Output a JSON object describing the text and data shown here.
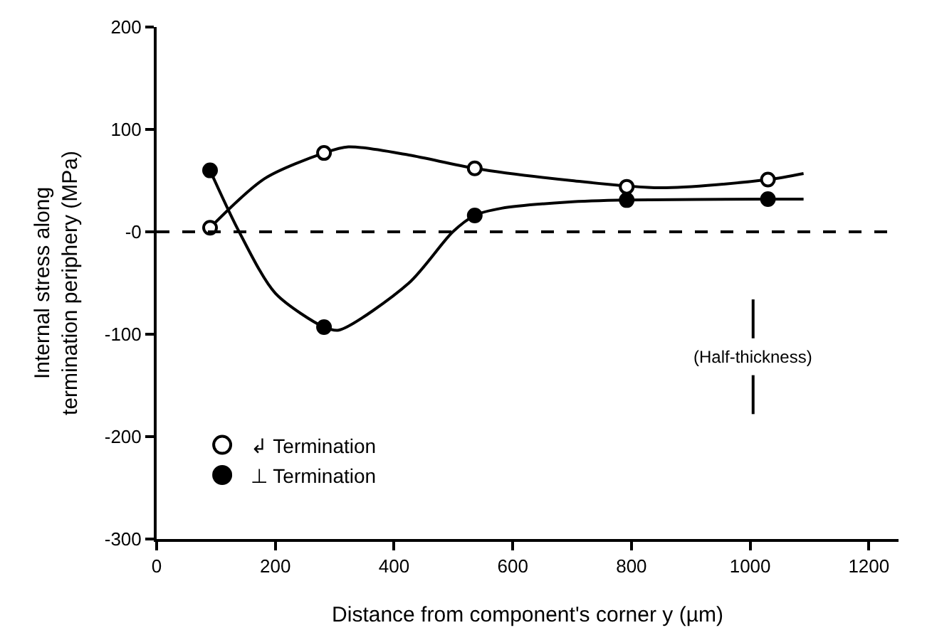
{
  "chart_data": {
    "type": "scatter",
    "xlabel": "Distance from component's corner y (µm)",
    "ylabel": "Internal stress along\ntermination periphery (MPa)",
    "xlim": [
      0,
      1250
    ],
    "xticks": [
      0,
      200,
      400,
      600,
      800,
      1000,
      1200
    ],
    "ylim": [
      -300,
      200
    ],
    "yticks": [
      {
        "value": -300,
        "label": "-300"
      },
      {
        "value": -200,
        "label": "-200"
      },
      {
        "value": -100,
        "label": "-100"
      },
      {
        "value": 0,
        "label": "-0"
      },
      {
        "value": 100,
        "label": "100"
      },
      {
        "value": 200,
        "label": "200"
      }
    ],
    "legend": "bottom left",
    "series": [
      {
        "type": "line",
        "color": "#000000",
        "x": [
          90,
          182,
          282,
          323,
          425,
          536,
          700,
          849,
          1030,
          1090
        ],
        "values": [
          4,
          52,
          77,
          83,
          75,
          62,
          50,
          43,
          51,
          57
        ]
      },
      {
        "type": "line",
        "color": "#000000",
        "x": [
          90,
          139,
          200,
          282,
          307,
          425,
          499,
          536,
          581,
          692,
          792,
          1030,
          1090
        ],
        "values": [
          60,
          0,
          -60,
          -93,
          -96,
          -50,
          0,
          16,
          23,
          29,
          31,
          32,
          32
        ]
      },
      {
        "type": "line",
        "color": "#000000",
        "x": [
          1005,
          1005
        ],
        "values": [
          -66,
          -104
        ]
      },
      {
        "type": "line",
        "color": "#000000",
        "x": [
          1005,
          1005
        ],
        "values": [
          -140,
          -178
        ]
      },
      {
        "name": "↲ Termination",
        "marker": "circle-open",
        "color": "#000000",
        "x": [
          90,
          282,
          536,
          792,
          1030
        ],
        "values": [
          4,
          77,
          62,
          44,
          51
        ]
      },
      {
        "name": "⊥ Termination",
        "marker": "circle",
        "color": "#000000",
        "x": [
          90,
          282,
          536,
          792,
          1030
        ],
        "values": [
          60,
          -93,
          16,
          31,
          32
        ]
      }
    ],
    "ref_lines": [
      {
        "axis": "y",
        "value": 0,
        "line_style": "dashed",
        "color": "#000000"
      }
    ],
    "annotations": [
      "(Half-thickness)"
    ]
  }
}
